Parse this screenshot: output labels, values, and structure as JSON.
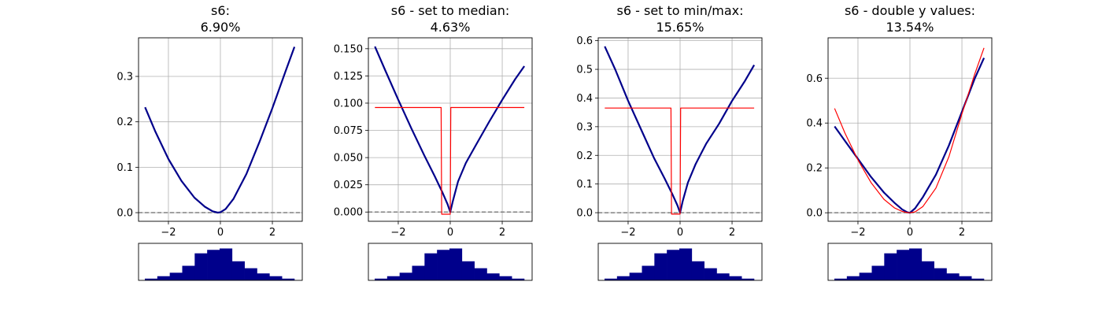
{
  "chart_data": [
    {
      "type": "line",
      "title": [
        "s6:",
        "6.90%"
      ],
      "xlim": [
        -3.15,
        3.15
      ],
      "ylim": [
        -0.019,
        0.385
      ],
      "xticks": [
        -2,
        0,
        2
      ],
      "yticks": [
        0.0,
        0.1,
        0.2,
        0.3
      ],
      "ytick_labels": [
        "0.0",
        "0.1",
        "0.2",
        "0.3"
      ],
      "grid": true,
      "series": [
        {
          "role": "model",
          "color": "#00008b",
          "x": [
            -2.9,
            -2.5,
            -2.0,
            -1.5,
            -1.0,
            -0.6,
            -0.3,
            -0.1,
            0.0,
            0.2,
            0.5,
            1.0,
            1.5,
            2.0,
            2.5,
            2.85
          ],
          "y": [
            0.232,
            0.178,
            0.118,
            0.07,
            0.033,
            0.013,
            0.003,
            0.0,
            0.001,
            0.008,
            0.03,
            0.085,
            0.155,
            0.23,
            0.31,
            0.365
          ]
        }
      ],
      "baseline": 0.0,
      "hist": [
        0.05,
        0.12,
        0.22,
        0.42,
        0.78,
        0.88,
        0.92,
        0.55,
        0.35,
        0.2,
        0.12,
        0.05
      ]
    },
    {
      "type": "line",
      "title": [
        "s6 - set to median:",
        "4.63%"
      ],
      "xlim": [
        -3.15,
        3.15
      ],
      "ylim": [
        -0.0085,
        0.16
      ],
      "xticks": [
        -2,
        0,
        2
      ],
      "yticks": [
        0.0,
        0.025,
        0.05,
        0.075,
        0.1,
        0.125,
        0.15
      ],
      "ytick_labels": [
        "0.000",
        "0.025",
        "0.050",
        "0.075",
        "0.100",
        "0.125",
        "0.150"
      ],
      "grid": true,
      "series": [
        {
          "role": "model",
          "color": "#00008b",
          "x": [
            -2.9,
            -2.5,
            -2.0,
            -1.5,
            -1.0,
            -0.6,
            -0.3,
            -0.1,
            0.0,
            0.1,
            0.3,
            0.6,
            1.0,
            1.5,
            2.0,
            2.5,
            2.85
          ],
          "y": [
            0.152,
            0.13,
            0.103,
            0.077,
            0.052,
            0.033,
            0.018,
            0.007,
            0.0,
            0.01,
            0.028,
            0.045,
            0.062,
            0.083,
            0.103,
            0.122,
            0.134
          ]
        },
        {
          "role": "comparison",
          "color": "#ff0000",
          "x": [
            -2.9,
            -0.35,
            -0.33,
            0.0,
            0.02,
            0.04,
            2.85
          ],
          "y": [
            0.096,
            0.096,
            -0.002,
            -0.002,
            0.096,
            0.096,
            0.096
          ]
        }
      ],
      "baseline": 0.0,
      "hist": [
        0.05,
        0.12,
        0.22,
        0.42,
        0.78,
        0.88,
        0.92,
        0.55,
        0.35,
        0.2,
        0.12,
        0.05
      ]
    },
    {
      "type": "line",
      "title": [
        "s6 - set to min/max:",
        "15.65%"
      ],
      "xlim": [
        -3.15,
        3.15
      ],
      "ylim": [
        -0.03,
        0.61
      ],
      "xticks": [
        -2,
        0,
        2
      ],
      "yticks": [
        0.0,
        0.1,
        0.2,
        0.3,
        0.4,
        0.5,
        0.6
      ],
      "ytick_labels": [
        "0.0",
        "0.1",
        "0.2",
        "0.3",
        "0.4",
        "0.5",
        "0.6"
      ],
      "grid": true,
      "series": [
        {
          "role": "model",
          "color": "#00008b",
          "x": [
            -2.9,
            -2.5,
            -2.0,
            -1.5,
            -1.0,
            -0.6,
            -0.3,
            -0.1,
            0.0,
            0.1,
            0.3,
            0.6,
            1.0,
            1.5,
            2.0,
            2.5,
            2.85
          ],
          "y": [
            0.58,
            0.5,
            0.39,
            0.29,
            0.19,
            0.12,
            0.065,
            0.025,
            0.0,
            0.04,
            0.105,
            0.17,
            0.24,
            0.31,
            0.39,
            0.46,
            0.515
          ]
        },
        {
          "role": "comparison",
          "color": "#ff0000",
          "x": [
            -2.9,
            -0.35,
            -0.33,
            0.0,
            0.02,
            0.04,
            2.85
          ],
          "y": [
            0.365,
            0.365,
            -0.005,
            -0.005,
            0.365,
            0.365,
            0.365
          ]
        }
      ],
      "baseline": 0.0,
      "hist": [
        0.05,
        0.12,
        0.22,
        0.42,
        0.78,
        0.88,
        0.92,
        0.55,
        0.35,
        0.2,
        0.12,
        0.05
      ]
    },
    {
      "type": "line",
      "title": [
        "s6 - double y values:",
        "13.54%"
      ],
      "xlim": [
        -3.15,
        3.15
      ],
      "ylim": [
        -0.038,
        0.78
      ],
      "xticks": [
        -2,
        0,
        2
      ],
      "yticks": [
        0.0,
        0.2,
        0.4,
        0.6
      ],
      "ytick_labels": [
        "0.0",
        "0.2",
        "0.4",
        "0.6"
      ],
      "grid": true,
      "series": [
        {
          "role": "model",
          "color": "#00008b",
          "x": [
            -2.9,
            -2.5,
            -2.0,
            -1.5,
            -1.0,
            -0.6,
            -0.3,
            -0.1,
            0.0,
            0.2,
            0.5,
            1.0,
            1.5,
            2.0,
            2.5,
            2.85
          ],
          "y": [
            0.385,
            0.32,
            0.24,
            0.16,
            0.09,
            0.045,
            0.015,
            0.002,
            0.0,
            0.02,
            0.07,
            0.17,
            0.3,
            0.45,
            0.6,
            0.69
          ]
        },
        {
          "role": "comparison",
          "color": "#ff0000",
          "x": [
            -2.9,
            -2.5,
            -2.0,
            -1.5,
            -1.0,
            -0.6,
            -0.3,
            -0.1,
            0.0,
            0.2,
            0.5,
            1.0,
            1.5,
            2.0,
            2.5,
            2.85
          ],
          "y": [
            0.465,
            0.355,
            0.235,
            0.135,
            0.06,
            0.022,
            0.006,
            0.001,
            0.0,
            0.004,
            0.028,
            0.11,
            0.25,
            0.44,
            0.62,
            0.735
          ]
        }
      ],
      "baseline": 0.0,
      "hist": [
        0.05,
        0.12,
        0.22,
        0.42,
        0.78,
        0.88,
        0.92,
        0.55,
        0.35,
        0.2,
        0.12,
        0.05
      ]
    }
  ]
}
